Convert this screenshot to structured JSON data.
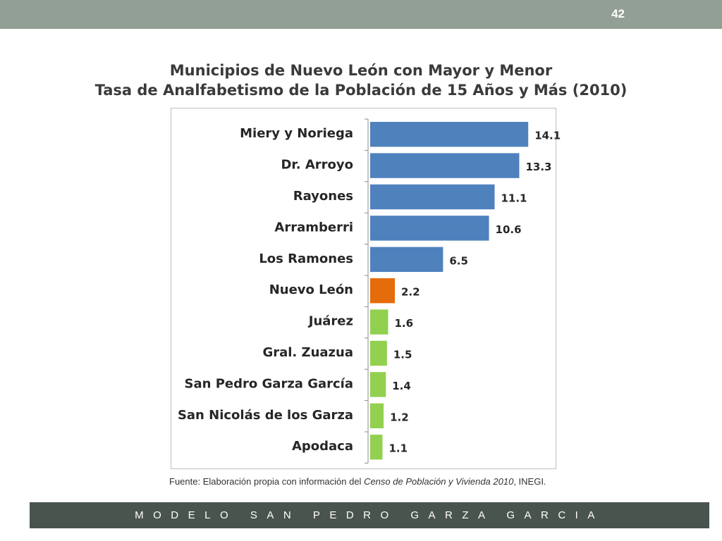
{
  "slide": {
    "number": "42",
    "footer": "MODELO SAN PEDRO GARZA GARCIA"
  },
  "title": {
    "line1": "Municipios de Nuevo León con Mayor y Menor",
    "line2": "Tasa de Analfabetismo de la Población de 15 Años y Más (2010)"
  },
  "source": {
    "prefix": "Fuente: Elaboración propia con información del ",
    "italic": "Censo de Población y Vivienda  2010",
    "suffix": ", INEGI."
  },
  "colors": {
    "high": "#4f81bd",
    "state": "#e46c0a",
    "low": "#92d050"
  },
  "chart_data": {
    "type": "bar",
    "orientation": "horizontal",
    "categories": [
      "Miery y Noriega",
      "Dr. Arroyo",
      "Rayones",
      "Arramberri",
      "Los Ramones",
      "Nuevo León",
      "Juárez",
      "Gral. Zuazua",
      "San Pedro Garza García",
      "San Nicolás de los Garza",
      "Apodaca"
    ],
    "values": [
      14.1,
      13.3,
      11.1,
      10.6,
      6.5,
      2.2,
      1.6,
      1.5,
      1.4,
      1.2,
      1.1
    ],
    "value_labels": [
      "14.1",
      "13.3",
      "11.1",
      "10.6",
      "6.5",
      "2.2",
      "1.6",
      "1.5",
      "1.4",
      "1.2",
      "1.1"
    ],
    "bar_groups": [
      "high",
      "high",
      "high",
      "high",
      "high",
      "state",
      "low",
      "low",
      "low",
      "low",
      "low"
    ],
    "xlim": [
      0,
      15
    ],
    "data_labels": true,
    "grid": false,
    "legend": "none"
  }
}
